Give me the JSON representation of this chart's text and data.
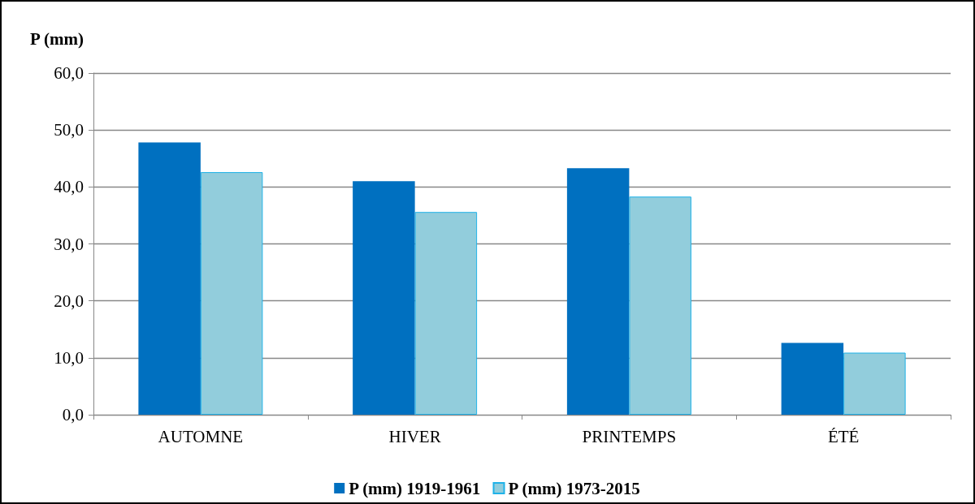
{
  "chart_data": {
    "type": "bar",
    "ylabel": "P (mm)",
    "categories": [
      "AUTOMNE",
      "HIVER",
      "PRINTEMPS",
      "ÉTÉ"
    ],
    "series": [
      {
        "name": "P (mm) 1919-1961",
        "color": "#0070c0",
        "values": [
          47.8,
          41.0,
          43.3,
          12.6
        ]
      },
      {
        "name": "P (mm) 1973-2015",
        "color": "#92cddc",
        "values": [
          42.6,
          35.6,
          38.3,
          10.9
        ]
      }
    ],
    "ylim": [
      0,
      60
    ],
    "yticks": [
      {
        "value": 0,
        "label": "0,0"
      },
      {
        "value": 10,
        "label": "10,0"
      },
      {
        "value": 20,
        "label": "20,0"
      },
      {
        "value": 30,
        "label": "30,0"
      },
      {
        "value": 40,
        "label": "40,0"
      },
      {
        "value": 50,
        "label": "50,0"
      },
      {
        "value": 60,
        "label": "60,0"
      }
    ],
    "grid": "y",
    "legend": "bottom"
  }
}
